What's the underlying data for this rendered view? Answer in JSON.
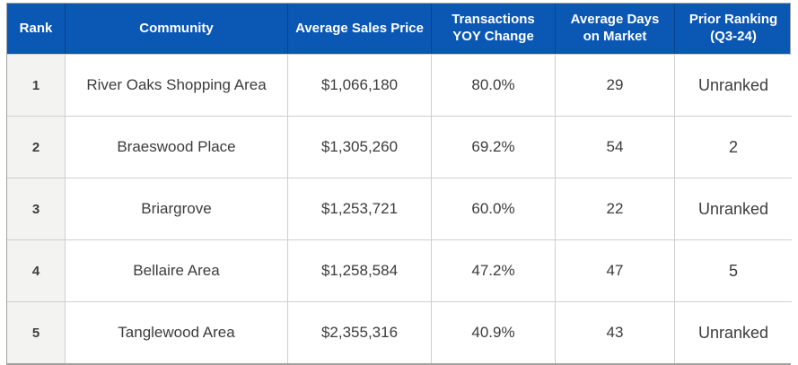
{
  "colors": {
    "header_bg": "#0b57b4",
    "header_text": "#ffffff",
    "header_divider": "rgba(0,0,0,0.22)",
    "body_text": "#3c3c3c",
    "rank_column_bg": "#f3f3f1",
    "grid_line": "#cfcfcd",
    "outer_border": "#a2a2a0"
  },
  "table": {
    "columns": {
      "rank": "Rank",
      "community": "Community",
      "avg_sales_price": "Average Sales Price",
      "transactions_yoy_change": "Transactions YOY Change",
      "avg_days_on_market": "Average Days on Market",
      "prior_ranking": "Prior Ranking (Q3-24)"
    },
    "rows": [
      {
        "rank": "1",
        "community": "River Oaks Shopping Area",
        "avg_sales_price": "$1,066,180",
        "transactions_yoy_change": "80.0%",
        "avg_days_on_market": "29",
        "prior_ranking": "Unranked"
      },
      {
        "rank": "2",
        "community": "Braeswood Place",
        "avg_sales_price": "$1,305,260",
        "transactions_yoy_change": "69.2%",
        "avg_days_on_market": "54",
        "prior_ranking": "2"
      },
      {
        "rank": "3",
        "community": "Briargrove",
        "avg_sales_price": "$1,253,721",
        "transactions_yoy_change": "60.0%",
        "avg_days_on_market": "22",
        "prior_ranking": "Unranked"
      },
      {
        "rank": "4",
        "community": "Bellaire Area",
        "avg_sales_price": "$1,258,584",
        "transactions_yoy_change": "47.2%",
        "avg_days_on_market": "47",
        "prior_ranking": "5"
      },
      {
        "rank": "5",
        "community": "Tanglewood Area",
        "avg_sales_price": "$2,355,316",
        "transactions_yoy_change": "40.9%",
        "avg_days_on_market": "43",
        "prior_ranking": "Unranked"
      }
    ]
  },
  "chart_data": {
    "type": "table",
    "title": "",
    "columns": [
      "Rank",
      "Community",
      "Average Sales Price",
      "Transactions YOY Change",
      "Average Days on Market",
      "Prior Ranking (Q3-24)"
    ],
    "rows": [
      [
        "1",
        "River Oaks Shopping Area",
        "$1,066,180",
        "80.0%",
        "29",
        "Unranked"
      ],
      [
        "2",
        "Braeswood Place",
        "$1,305,260",
        "69.2%",
        "54",
        "2"
      ],
      [
        "3",
        "Briargrove",
        "$1,253,721",
        "60.0%",
        "22",
        "Unranked"
      ],
      [
        "4",
        "Bellaire Area",
        "$1,258,584",
        "47.2%",
        "47",
        "5"
      ],
      [
        "5",
        "Tanglewood Area",
        "$2,355,316",
        "40.9%",
        "43",
        "Unranked"
      ]
    ],
    "avg_sales_price_values": [
      1066180,
      1305260,
      1253721,
      1258584,
      2355316
    ],
    "transactions_yoy_change_pct": [
      80.0,
      69.2,
      60.0,
      47.2,
      40.9
    ],
    "avg_days_on_market_values": [
      29,
      54,
      22,
      47,
      43
    ]
  }
}
